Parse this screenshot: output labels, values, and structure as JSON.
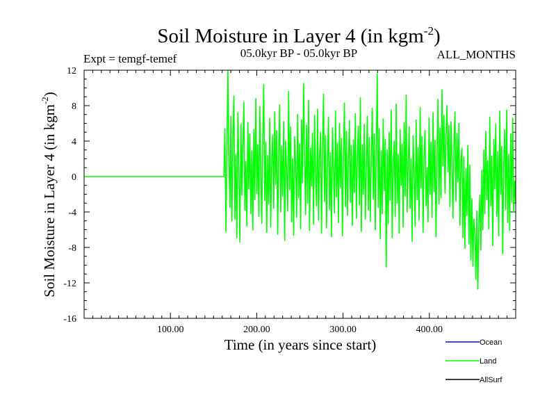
{
  "chart_data": {
    "type": "line",
    "title_main": "Soil Moisture in Layer 4 (in kgm",
    "title_sup": "-2",
    "title_close": ")",
    "expt_label": "Expt = temgf-temef",
    "period_label": "05.0kyr BP - 05.0kyr BP",
    "months_label": "ALL_MONTHS",
    "xlabel": "Time (in years since start)",
    "ylabel_main": "Soil Moisture in Layer 4 (in kgm",
    "ylabel_sup": "-2",
    "ylabel_close": ")",
    "xlim": [
      0,
      500
    ],
    "ylim": [
      -16,
      12
    ],
    "xticks": [
      100,
      200,
      300,
      400
    ],
    "xtick_labels": [
      "100.00",
      "200.00",
      "300.00",
      "400.00"
    ],
    "yticks": [
      12,
      8,
      4,
      0,
      -4,
      -8,
      -12,
      -16
    ],
    "ytick_labels": [
      "12",
      "8",
      "4",
      "0",
      "-4",
      "-8",
      "-12",
      "-16"
    ],
    "land_flat_until": 162,
    "land_series_start": 162,
    "land_values": [
      0.3,
      5.4,
      -6.2,
      3.1,
      11.9,
      2.2,
      -3.5,
      6.8,
      -5.0,
      4.4,
      9.1,
      -4.8,
      2.5,
      -6.9,
      7.2,
      1.0,
      -7.4,
      5.9,
      -2.1,
      3.3,
      8.4,
      -3.8,
      1.7,
      -5.6,
      6.1,
      -1.4,
      4.8,
      -4.2,
      2.9,
      -6.0,
      5.3,
      -2.6,
      8.8,
      -1.9,
      3.6,
      -4.5,
      7.9,
      0.8,
      -5.3,
      4.2,
      10.4,
      -2.7,
      3.9,
      -6.3,
      2.4,
      -3.1,
      6.6,
      -5.7,
      1.9,
      4.7,
      -3.6,
      7.3,
      -0.9,
      5.2,
      -6.5,
      2.8,
      8.1,
      -4.0,
      3.4,
      -2.2,
      6.2,
      -7.2,
      4.0,
      0.6,
      -3.9,
      9.6,
      -1.5,
      5.6,
      -5.1,
      2.0,
      -6.6,
      4.5,
      1.3,
      -4.6,
      7.0,
      -2.4,
      3.7,
      -5.9,
      6.4,
      -0.7,
      10.5,
      2.6,
      -4.3,
      5.8,
      -3.0,
      8.6,
      -6.1,
      3.2,
      -1.1,
      4.9,
      -5.4,
      6.9,
      0.4,
      -3.3,
      7.6,
      -4.9,
      2.1,
      5.0,
      -6.4,
      3.0,
      9.3,
      -2.8,
      4.6,
      -5.8,
      1.6,
      6.7,
      -3.7,
      2.7,
      -6.8,
      5.5,
      0.9,
      -4.1,
      7.4,
      -2.3,
      3.8,
      -5.2,
      6.0,
      -1.2,
      4.3,
      -6.7,
      2.3,
      8.3,
      -3.4,
      5.1,
      -4.4,
      1.4,
      6.3,
      -2.9,
      3.5,
      -5.5,
      4.1,
      -1.8,
      7.1,
      -4.7,
      2.2,
      5.7,
      -3.2,
      8.9,
      -6.2,
      3.6,
      -2.0,
      5.9,
      -4.8,
      1.1,
      6.8,
      -3.8,
      4.4,
      -5.0,
      2.6,
      7.7,
      -2.5,
      4.8,
      -6.0,
      3.1,
      11.6,
      -3.5,
      5.4,
      -7.0,
      2.9,
      -4.2,
      6.5,
      -1.6,
      4.2,
      -10.2,
      3.0,
      -5.3,
      5.0,
      -2.7,
      7.5,
      -6.9,
      1.8,
      4.0,
      -4.5,
      8.2,
      -3.0,
      2.5,
      -6.4,
      5.3,
      -1.0,
      3.7,
      -5.7,
      6.1,
      -2.2,
      9.2,
      -4.0,
      1.5,
      5.6,
      -3.6,
      2.0,
      -7.3,
      4.6,
      0.2,
      -5.6,
      6.4,
      -2.6,
      3.3,
      -4.9,
      7.8,
      -1.3,
      4.5,
      -6.3,
      2.4,
      5.2,
      -3.3,
      1.0,
      -5.1,
      6.6,
      -2.0,
      3.9,
      -4.6,
      7.2,
      -1.7,
      4.1,
      -6.8,
      2.7,
      8.7,
      -3.1,
      5.5,
      -2.4,
      9.8,
      1.2,
      6.9,
      -1.9,
      4.7,
      8.0,
      0.5,
      5.8,
      -3.4,
      6.2,
      2.1,
      -4.7,
      3.6,
      7.3,
      -2.8,
      4.9,
      -0.6,
      6.0,
      -5.5,
      1.7,
      3.2,
      -6.9,
      2.2,
      -8.1,
      0.9,
      -4.4,
      3.5,
      -7.6,
      1.3,
      -9.4,
      -2.5,
      -10.1,
      -4.8,
      -6.3,
      -11.6,
      -3.9,
      -12.7,
      -5.4,
      -2.1,
      -8.3,
      0.7,
      -6.0,
      3.0,
      -4.2,
      5.1,
      -2.6,
      1.8,
      -5.9,
      6.7,
      -3.3,
      2.3,
      -7.8,
      4.2,
      -1.4,
      5.9,
      -4.5,
      2.8,
      -6.7,
      7.4,
      -2.0,
      3.4,
      -8.7,
      1.6,
      5.3,
      -3.7,
      7.5,
      -5.2,
      2.5,
      -6.1,
      4.8,
      -2.9,
      6.6,
      -4.0,
      -0.5,
      -3.0
    ],
    "legend": [
      {
        "name": "Ocean",
        "color": "#0000ff"
      },
      {
        "name": "Land",
        "color": "#00ff00"
      },
      {
        "name": "AllSurf",
        "color": "#000000"
      }
    ]
  }
}
